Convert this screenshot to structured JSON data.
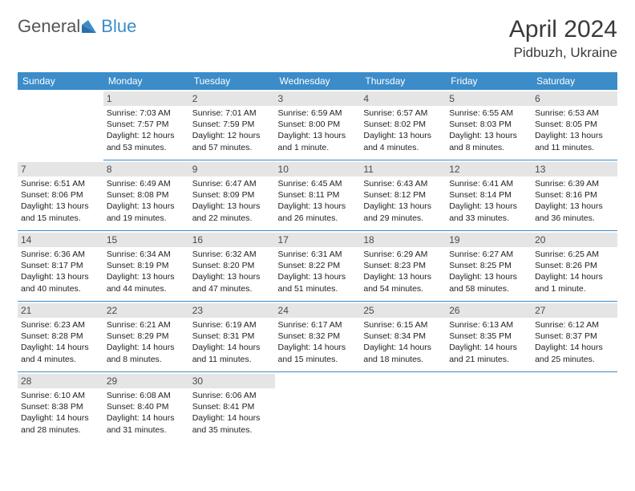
{
  "logo": {
    "text1": "General",
    "text2": "Blue"
  },
  "title": "April 2024",
  "location": "Pidbuzh, Ukraine",
  "weekdays": [
    "Sunday",
    "Monday",
    "Tuesday",
    "Wednesday",
    "Thursday",
    "Friday",
    "Saturday"
  ],
  "colors": {
    "header_bg": "#3b8cc9",
    "header_text": "#ffffff",
    "daynum_bg": "#e5e5e5",
    "border": "#3b8cc9"
  },
  "weeks": [
    [
      null,
      {
        "n": "1",
        "sr": "7:03 AM",
        "ss": "7:57 PM",
        "dl": "12 hours and 53 minutes."
      },
      {
        "n": "2",
        "sr": "7:01 AM",
        "ss": "7:59 PM",
        "dl": "12 hours and 57 minutes."
      },
      {
        "n": "3",
        "sr": "6:59 AM",
        "ss": "8:00 PM",
        "dl": "13 hours and 1 minute."
      },
      {
        "n": "4",
        "sr": "6:57 AM",
        "ss": "8:02 PM",
        "dl": "13 hours and 4 minutes."
      },
      {
        "n": "5",
        "sr": "6:55 AM",
        "ss": "8:03 PM",
        "dl": "13 hours and 8 minutes."
      },
      {
        "n": "6",
        "sr": "6:53 AM",
        "ss": "8:05 PM",
        "dl": "13 hours and 11 minutes."
      }
    ],
    [
      {
        "n": "7",
        "sr": "6:51 AM",
        "ss": "8:06 PM",
        "dl": "13 hours and 15 minutes."
      },
      {
        "n": "8",
        "sr": "6:49 AM",
        "ss": "8:08 PM",
        "dl": "13 hours and 19 minutes."
      },
      {
        "n": "9",
        "sr": "6:47 AM",
        "ss": "8:09 PM",
        "dl": "13 hours and 22 minutes."
      },
      {
        "n": "10",
        "sr": "6:45 AM",
        "ss": "8:11 PM",
        "dl": "13 hours and 26 minutes."
      },
      {
        "n": "11",
        "sr": "6:43 AM",
        "ss": "8:12 PM",
        "dl": "13 hours and 29 minutes."
      },
      {
        "n": "12",
        "sr": "6:41 AM",
        "ss": "8:14 PM",
        "dl": "13 hours and 33 minutes."
      },
      {
        "n": "13",
        "sr": "6:39 AM",
        "ss": "8:16 PM",
        "dl": "13 hours and 36 minutes."
      }
    ],
    [
      {
        "n": "14",
        "sr": "6:36 AM",
        "ss": "8:17 PM",
        "dl": "13 hours and 40 minutes."
      },
      {
        "n": "15",
        "sr": "6:34 AM",
        "ss": "8:19 PM",
        "dl": "13 hours and 44 minutes."
      },
      {
        "n": "16",
        "sr": "6:32 AM",
        "ss": "8:20 PM",
        "dl": "13 hours and 47 minutes."
      },
      {
        "n": "17",
        "sr": "6:31 AM",
        "ss": "8:22 PM",
        "dl": "13 hours and 51 minutes."
      },
      {
        "n": "18",
        "sr": "6:29 AM",
        "ss": "8:23 PM",
        "dl": "13 hours and 54 minutes."
      },
      {
        "n": "19",
        "sr": "6:27 AM",
        "ss": "8:25 PM",
        "dl": "13 hours and 58 minutes."
      },
      {
        "n": "20",
        "sr": "6:25 AM",
        "ss": "8:26 PM",
        "dl": "14 hours and 1 minute."
      }
    ],
    [
      {
        "n": "21",
        "sr": "6:23 AM",
        "ss": "8:28 PM",
        "dl": "14 hours and 4 minutes."
      },
      {
        "n": "22",
        "sr": "6:21 AM",
        "ss": "8:29 PM",
        "dl": "14 hours and 8 minutes."
      },
      {
        "n": "23",
        "sr": "6:19 AM",
        "ss": "8:31 PM",
        "dl": "14 hours and 11 minutes."
      },
      {
        "n": "24",
        "sr": "6:17 AM",
        "ss": "8:32 PM",
        "dl": "14 hours and 15 minutes."
      },
      {
        "n": "25",
        "sr": "6:15 AM",
        "ss": "8:34 PM",
        "dl": "14 hours and 18 minutes."
      },
      {
        "n": "26",
        "sr": "6:13 AM",
        "ss": "8:35 PM",
        "dl": "14 hours and 21 minutes."
      },
      {
        "n": "27",
        "sr": "6:12 AM",
        "ss": "8:37 PM",
        "dl": "14 hours and 25 minutes."
      }
    ],
    [
      {
        "n": "28",
        "sr": "6:10 AM",
        "ss": "8:38 PM",
        "dl": "14 hours and 28 minutes."
      },
      {
        "n": "29",
        "sr": "6:08 AM",
        "ss": "8:40 PM",
        "dl": "14 hours and 31 minutes."
      },
      {
        "n": "30",
        "sr": "6:06 AM",
        "ss": "8:41 PM",
        "dl": "14 hours and 35 minutes."
      },
      null,
      null,
      null,
      null
    ]
  ]
}
